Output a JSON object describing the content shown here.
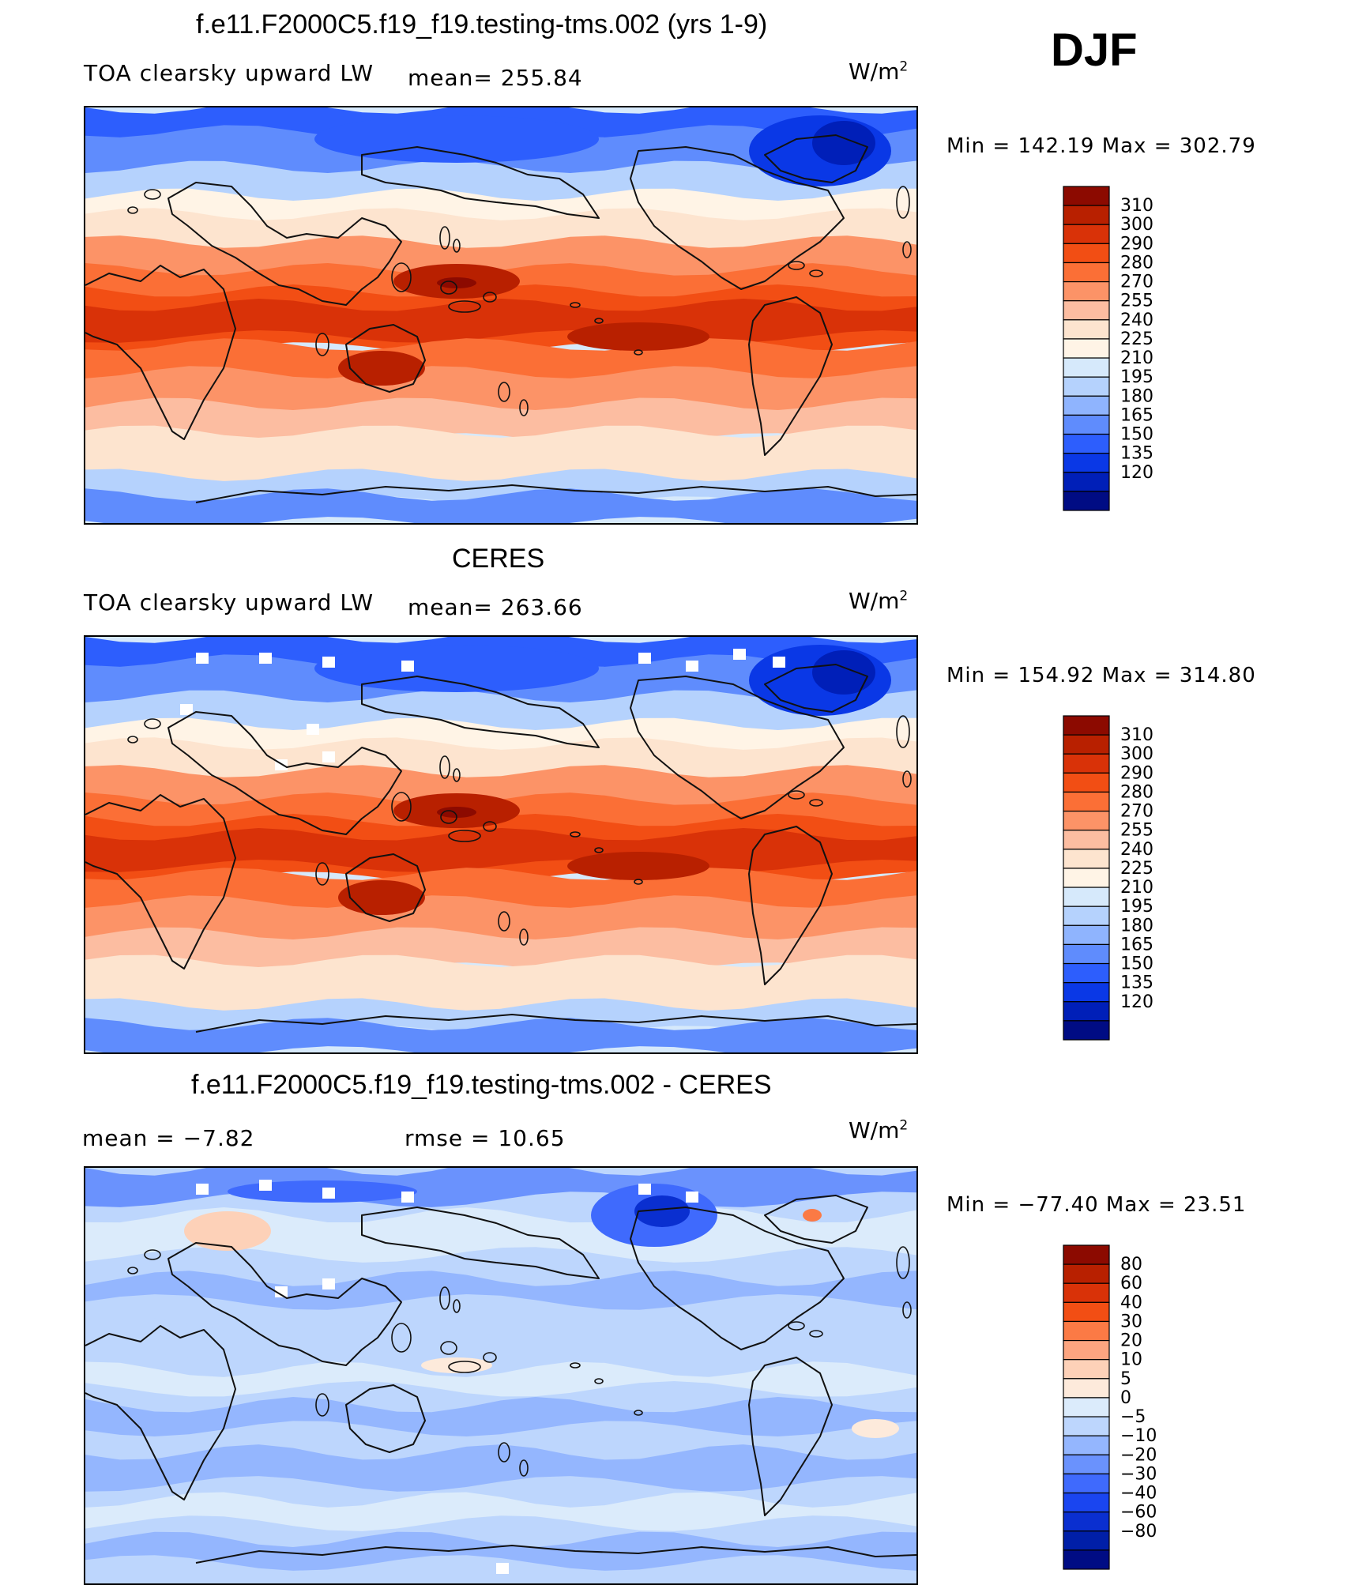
{
  "season": "DJF",
  "panels": [
    {
      "title": "f.e11.F2000C5.f19_f19.testing-tms.002 (yrs 1-9)",
      "field": "TOA clearsky upward LW",
      "stat1": "mean=  255.84",
      "stat2": "",
      "units": "W/m",
      "units_sup": "2",
      "minmax": "Min  =  142.19  Max  =  302.79",
      "scale": "abs",
      "mask": false
    },
    {
      "title": "CERES",
      "field": "TOA clearsky upward LW",
      "stat1": "mean=  263.66",
      "stat2": "",
      "units": "W/m",
      "units_sup": "2",
      "minmax": "Min  =  154.92  Max  =  314.80",
      "scale": "abs",
      "mask": true
    },
    {
      "title": "f.e11.F2000C5.f19_f19.testing-tms.002 - CERES",
      "field": "mean  =    −7.82",
      "stat1": "rmse  =    10.65",
      "stat2": "",
      "units": "W/m",
      "units_sup": "2",
      "minmax": "Min  =  −77.40  Max  =    23.51",
      "scale": "diff",
      "mask": true
    }
  ],
  "colorbars": {
    "abs": {
      "labels": [
        "310",
        "300",
        "290",
        "280",
        "270",
        "255",
        "240",
        "225",
        "210",
        "195",
        "180",
        "165",
        "150",
        "135",
        "120"
      ],
      "colors": [
        "#8c0a00",
        "#b82000",
        "#d93208",
        "#f24e14",
        "#fb6f36",
        "#fc9367",
        "#fcbda1",
        "#fde4cf",
        "#fff4e6",
        "#d6e9fb",
        "#b5d2fd",
        "#8fb4fe",
        "#5f8cfd",
        "#2d5efd",
        "#0a38e6",
        "#001fb8",
        "#000c84"
      ]
    },
    "diff": {
      "labels": [
        "80",
        "60",
        "40",
        "30",
        "20",
        "10",
        "5",
        "0",
        "−5",
        "−10",
        "−20",
        "−30",
        "−40",
        "−60",
        "−80"
      ],
      "colors": [
        "#8c0a00",
        "#b82000",
        "#d93208",
        "#f24e14",
        "#fb7a45",
        "#fca580",
        "#fdd1b8",
        "#fdeadb",
        "#dbebfb",
        "#bdd6fd",
        "#94b6fe",
        "#6a92fd",
        "#3f6afd",
        "#1a45f0",
        "#0a2fd0",
        "#001fa8",
        "#000c84"
      ]
    }
  }
}
